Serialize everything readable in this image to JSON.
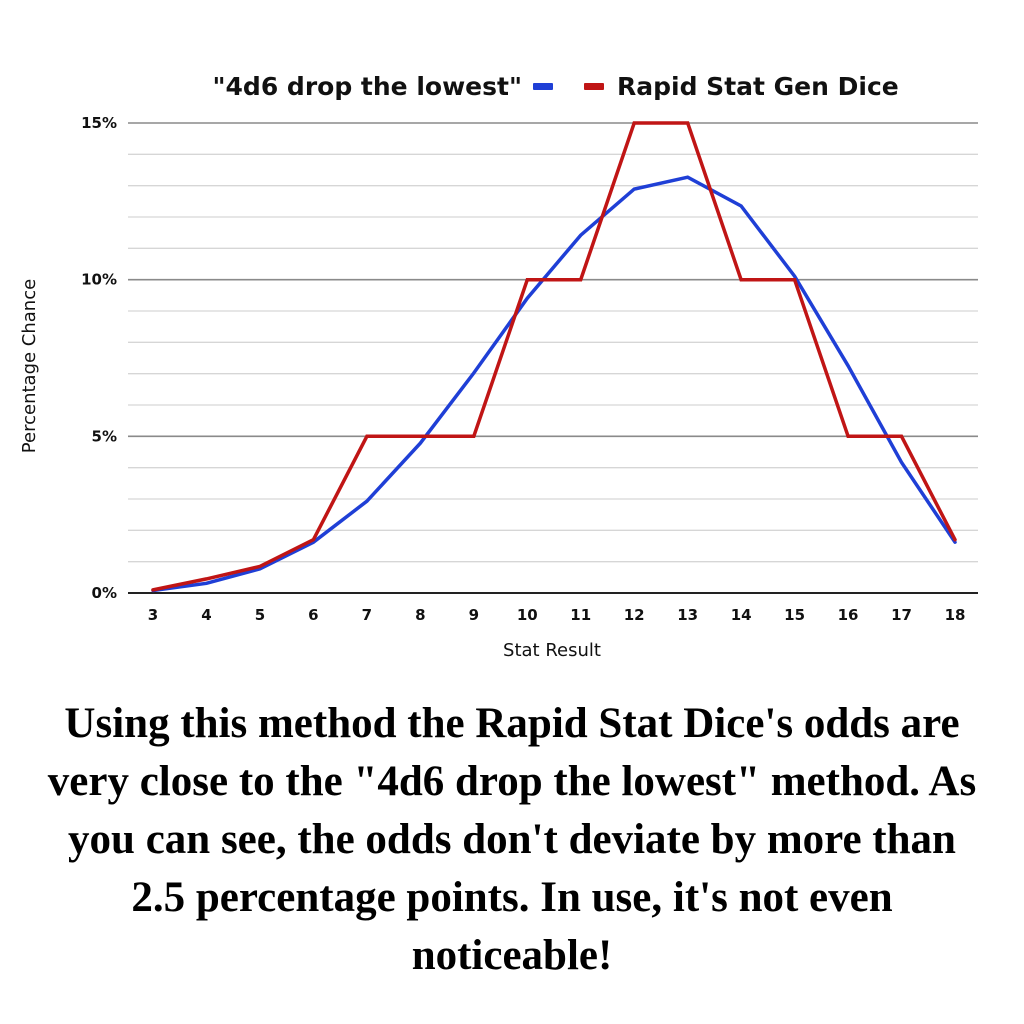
{
  "chart_data": {
    "type": "line",
    "title": "",
    "xlabel": "Stat Result",
    "ylabel": "Percentage Chance",
    "x": [
      3,
      4,
      5,
      6,
      7,
      8,
      9,
      10,
      11,
      12,
      13,
      14,
      15,
      16,
      17,
      18
    ],
    "x_tick_labels": [
      "3",
      "4",
      "5",
      "6",
      "7",
      "8",
      "9",
      "10",
      "11",
      "12",
      "13",
      "14",
      "15",
      "16",
      "17",
      "18"
    ],
    "y_ticks": [
      0,
      5,
      10,
      15
    ],
    "y_tick_labels": [
      "0%",
      "5%",
      "10%",
      "15%"
    ],
    "ylim": [
      0,
      15
    ],
    "grid": true,
    "legend_position": "top",
    "series": [
      {
        "name": "\"4d6 drop the lowest\"",
        "color": "#1f3fd6",
        "values": [
          0.08,
          0.31,
          0.77,
          1.62,
          2.93,
          4.78,
          7.02,
          9.41,
          11.42,
          12.89,
          13.27,
          12.35,
          10.11,
          7.25,
          4.17,
          1.62
        ]
      },
      {
        "name": "Rapid Stat Gen Dice",
        "color": "#c01515",
        "values": [
          0.1,
          0.45,
          0.85,
          1.7,
          5,
          5,
          5,
          10,
          10,
          15,
          15,
          10,
          10,
          5,
          5,
          1.7
        ]
      }
    ]
  },
  "caption": "Using this method the Rapid Stat Dice's odds are very close to the \"4d6 drop the lowest\" method. As you can see, the odds don't deviate by more than 2.5 percentage points. In use, it's not even noticeable!"
}
